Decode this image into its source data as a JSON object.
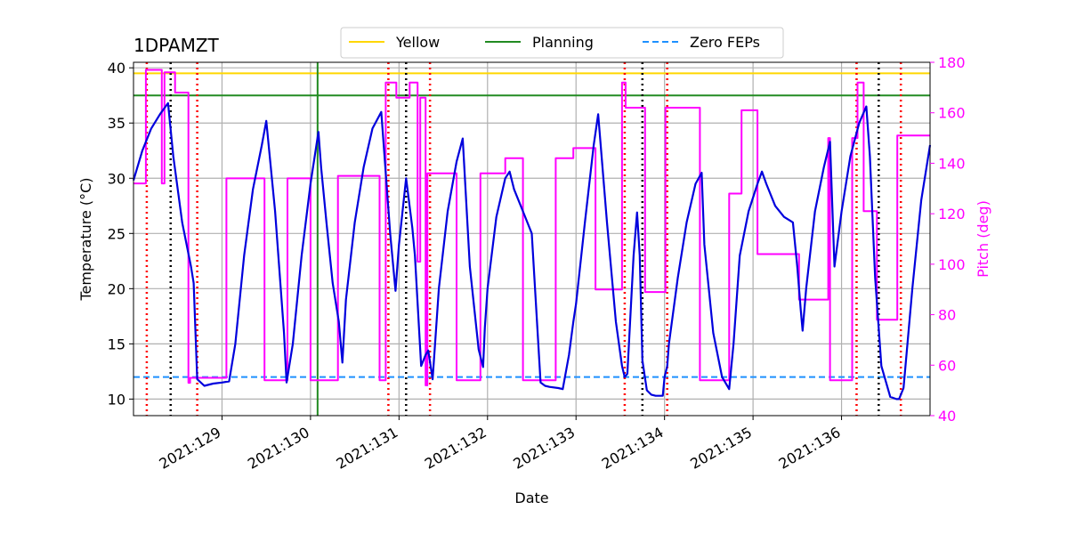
{
  "chart_data": {
    "type": "line",
    "title": "1DPAMZT",
    "xlabel": "Date",
    "ylabel_left": "Temperature ($^\\circ$C)",
    "ylabel_left_display": "Temperature (°C)",
    "ylabel_right": "Pitch (deg)",
    "xlim": [
      "2021:128.0",
      "2021:137.0"
    ],
    "x_ticks": [
      {
        "label": "2021:129",
        "value": 129
      },
      {
        "label": "2021:130",
        "value": 130
      },
      {
        "label": "2021:131",
        "value": 131
      },
      {
        "label": "2021:132",
        "value": 132
      },
      {
        "label": "2021:133",
        "value": 133
      },
      {
        "label": "2021:134",
        "value": 134
      },
      {
        "label": "2021:135",
        "value": 135
      },
      {
        "label": "2021:136",
        "value": 136
      }
    ],
    "ylim_left": [
      8.5,
      40.5
    ],
    "yticks_left": [
      10,
      15,
      20,
      25,
      30,
      35,
      40
    ],
    "ylim_right": [
      40,
      180
    ],
    "yticks_right": [
      40,
      60,
      80,
      100,
      120,
      140,
      160,
      180
    ],
    "grid": true,
    "legend_position": "top-center",
    "colors": {
      "temperature": "#0000dd",
      "pitch": "#ff00ff",
      "yellow": "#ffd700",
      "planning": "#228b22",
      "zero_feps": "#1e90ff",
      "red_lines": "#ff0000",
      "black_lines": "#000000",
      "grid": "#b0b0b0"
    },
    "legend": [
      {
        "name": "Yellow",
        "style": "solid",
        "color": "#ffd700"
      },
      {
        "name": "Planning",
        "style": "solid",
        "color": "#228b22"
      },
      {
        "name": "Zero FEPs",
        "style": "dashed",
        "color": "#1e90ff"
      }
    ],
    "hlines": {
      "yellow": 39.5,
      "planning": 37.5,
      "zero_feps": 12.0
    },
    "vlines": {
      "planning_green": [
        130.08
      ],
      "red_dotted": [
        128.15,
        128.72,
        130.88,
        131.35,
        133.55,
        134.03,
        136.17,
        136.67
      ],
      "black_dotted": [
        128.42,
        131.08,
        133.75,
        136.42
      ]
    },
    "series": [
      {
        "name": "",
        "axis": "left",
        "x": [
          128.0,
          128.1,
          128.2,
          128.3,
          128.39,
          128.45,
          128.55,
          128.65,
          128.68,
          128.72,
          128.8,
          128.9,
          129.0,
          129.08,
          129.15,
          129.25,
          129.35,
          129.45,
          129.5,
          129.6,
          129.7,
          129.73,
          129.8,
          129.9,
          130.0,
          130.09,
          130.12,
          130.18,
          130.25,
          130.32,
          130.36,
          130.4,
          130.5,
          130.6,
          130.7,
          130.8,
          130.9,
          130.96,
          131.0,
          131.08,
          131.15,
          131.18,
          131.25,
          131.3,
          131.33,
          131.38,
          131.45,
          131.55,
          131.65,
          131.72,
          131.8,
          131.9,
          131.95,
          131.97,
          132.0,
          132.1,
          132.2,
          132.25,
          132.3,
          132.4,
          132.5,
          132.6,
          132.65,
          132.7,
          132.8,
          132.85,
          132.92,
          132.97,
          133.0,
          133.1,
          133.2,
          133.25,
          133.35,
          133.45,
          133.52,
          133.55,
          133.58,
          133.65,
          133.69,
          133.72,
          133.75,
          133.8,
          133.85,
          133.9,
          133.95,
          133.98,
          134.0,
          134.03,
          134.05,
          134.15,
          134.25,
          134.35,
          134.42,
          134.45,
          134.55,
          134.65,
          134.73,
          134.78,
          134.85,
          134.95,
          135.05,
          135.1,
          135.15,
          135.25,
          135.35,
          135.45,
          135.5,
          135.54,
          135.56,
          135.6,
          135.7,
          135.8,
          135.87,
          135.92,
          136.0,
          136.1,
          136.2,
          136.28,
          136.32,
          136.38,
          136.45,
          136.55,
          136.62,
          136.65,
          136.7,
          136.8,
          136.9,
          137.0
        ],
        "values": [
          29.8,
          32.5,
          34.5,
          35.8,
          36.8,
          32.0,
          26.0,
          22.0,
          20.5,
          11.8,
          11.2,
          11.4,
          11.5,
          11.6,
          15.0,
          23.0,
          29.0,
          33.0,
          35.2,
          27.0,
          16.0,
          11.5,
          15.0,
          23.0,
          29.5,
          34.2,
          31.0,
          26.0,
          20.5,
          17.0,
          13.3,
          19.0,
          26.0,
          31.0,
          34.5,
          36.0,
          25.0,
          19.8,
          24.0,
          30.0,
          25.5,
          23.0,
          13.0,
          14.0,
          14.4,
          11.8,
          20.0,
          27.0,
          31.5,
          33.6,
          22.0,
          14.5,
          12.9,
          16.5,
          20.0,
          26.5,
          30.0,
          30.6,
          29.0,
          27.0,
          25.0,
          11.5,
          11.2,
          11.1,
          11.0,
          10.9,
          14.0,
          17.0,
          18.6,
          26.0,
          33.0,
          35.8,
          26.0,
          17.0,
          13.0,
          12.0,
          12.3,
          23.0,
          26.9,
          23.0,
          13.5,
          10.8,
          10.4,
          10.3,
          10.3,
          10.3,
          12.0,
          13.0,
          15.0,
          21.0,
          26.0,
          29.5,
          30.5,
          24.0,
          16.0,
          12.0,
          10.9,
          15.0,
          23.0,
          27.0,
          29.5,
          30.6,
          29.5,
          27.5,
          26.5,
          26.0,
          22.0,
          18.0,
          16.2,
          20.0,
          27.0,
          31.0,
          33.3,
          22.0,
          27.0,
          32.0,
          35.0,
          36.5,
          32.0,
          21.0,
          13.0,
          10.2,
          10.0,
          10.0,
          11.0,
          20.0,
          28.0,
          33.0
        ]
      },
      {
        "name": "",
        "axis": "right",
        "x": [
          128.0,
          128.14,
          128.14,
          128.32,
          128.32,
          128.35,
          128.35,
          128.47,
          128.47,
          128.62,
          128.62,
          128.64,
          128.64,
          129.05,
          129.05,
          129.48,
          129.48,
          129.74,
          129.74,
          130.0,
          130.0,
          130.1,
          130.1,
          130.29,
          130.29,
          130.31,
          130.31,
          130.78,
          130.78,
          130.85,
          130.85,
          130.97,
          130.97,
          131.05,
          131.05,
          131.12,
          131.12,
          131.21,
          131.21,
          131.24,
          131.24,
          131.3,
          131.3,
          131.32,
          131.32,
          131.65,
          131.65,
          131.92,
          131.92,
          132.2,
          132.2,
          132.4,
          132.4,
          132.77,
          132.77,
          132.97,
          132.97,
          133.22,
          133.22,
          133.52,
          133.52,
          133.56,
          133.56,
          133.64,
          133.64,
          133.78,
          133.78,
          134.01,
          134.01,
          134.4,
          134.4,
          134.73,
          134.73,
          134.87,
          134.87,
          135.05,
          135.05,
          135.44,
          135.44,
          135.52,
          135.52,
          135.85,
          135.85,
          135.87,
          135.87,
          136.12,
          136.12,
          136.18,
          136.18,
          136.25,
          136.25,
          136.4,
          136.4,
          136.63,
          136.63,
          137.0
        ],
        "values": [
          132,
          132,
          177,
          177,
          132,
          132,
          176,
          176,
          168,
          168,
          53,
          53,
          55,
          55,
          134,
          134,
          54,
          54,
          134,
          134,
          54,
          54,
          54,
          54,
          54,
          54,
          135,
          135,
          54,
          54,
          172,
          172,
          166,
          166,
          166,
          166,
          172,
          172,
          101,
          101,
          166,
          166,
          52,
          52,
          136,
          136,
          54,
          54,
          136,
          136,
          142,
          142,
          54,
          54,
          142,
          142,
          146,
          146,
          90,
          90,
          172,
          172,
          162,
          162,
          162,
          162,
          89,
          89,
          162,
          162,
          54,
          54,
          128,
          128,
          161,
          161,
          104,
          104,
          104,
          104,
          86,
          86,
          150,
          150,
          54,
          54,
          150,
          150,
          172,
          172,
          121,
          121,
          78,
          78,
          151,
          151
        ]
      }
    ]
  }
}
